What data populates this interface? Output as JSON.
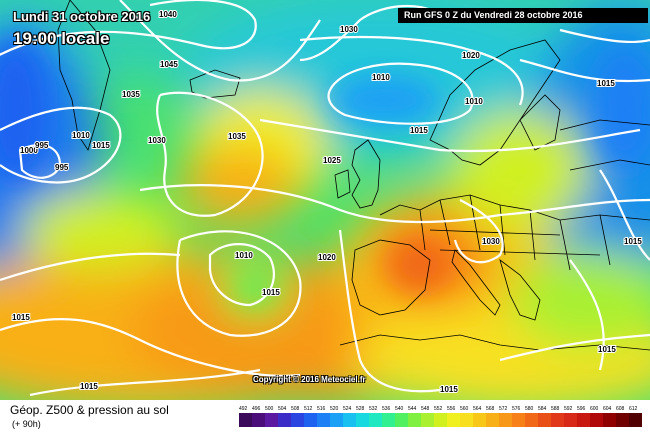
{
  "header": {
    "date": "Lundi 31 octobre 2016",
    "local_time": "19:00 locale",
    "run_info": "Run GFS 0 Z du Vendredi 28 octobre 2016"
  },
  "copyright": "Copyright © 2016 Meteociel.fr",
  "legend": {
    "title": "Géop. Z500 & pression au sol",
    "subtitle": "(+ 90h)",
    "scale_values": [
      "492",
      "496",
      "500",
      "504",
      "508",
      "512",
      "516",
      "520",
      "524",
      "528",
      "532",
      "536",
      "540",
      "544",
      "548",
      "552",
      "556",
      "560",
      "564",
      "568",
      "572",
      "576",
      "580",
      "584",
      "588",
      "592",
      "596",
      "600",
      "604",
      "608",
      "612"
    ],
    "scale_colors": [
      "#3c0a5a",
      "#4a0d7a",
      "#5b18a0",
      "#3b2cc8",
      "#2a45e0",
      "#1e62f0",
      "#1e80f5",
      "#1aa0f5",
      "#19c0f0",
      "#18d8e0",
      "#20e8c0",
      "#30f090",
      "#50f060",
      "#80f040",
      "#a8f030",
      "#d0f020",
      "#f0f020",
      "#f8e020",
      "#f8c818",
      "#f8b018",
      "#f89818",
      "#f88018",
      "#f06818",
      "#e85018",
      "#e03818",
      "#d82818",
      "#c81810",
      "#b00808",
      "#900000",
      "#700000",
      "#500000"
    ]
  },
  "isobar_labels": [
    "1040",
    "1045",
    "1035",
    "1030",
    "1010",
    "1000",
    "995",
    "995",
    "1015",
    "1010",
    "1020",
    "1010",
    "1015",
    "1015",
    "1035",
    "1030",
    "1025",
    "1030",
    "1020",
    "1010",
    "1015",
    "1015",
    "1015",
    "1015",
    "1015",
    "1015"
  ],
  "icons": {
    "map": "weather-map"
  }
}
